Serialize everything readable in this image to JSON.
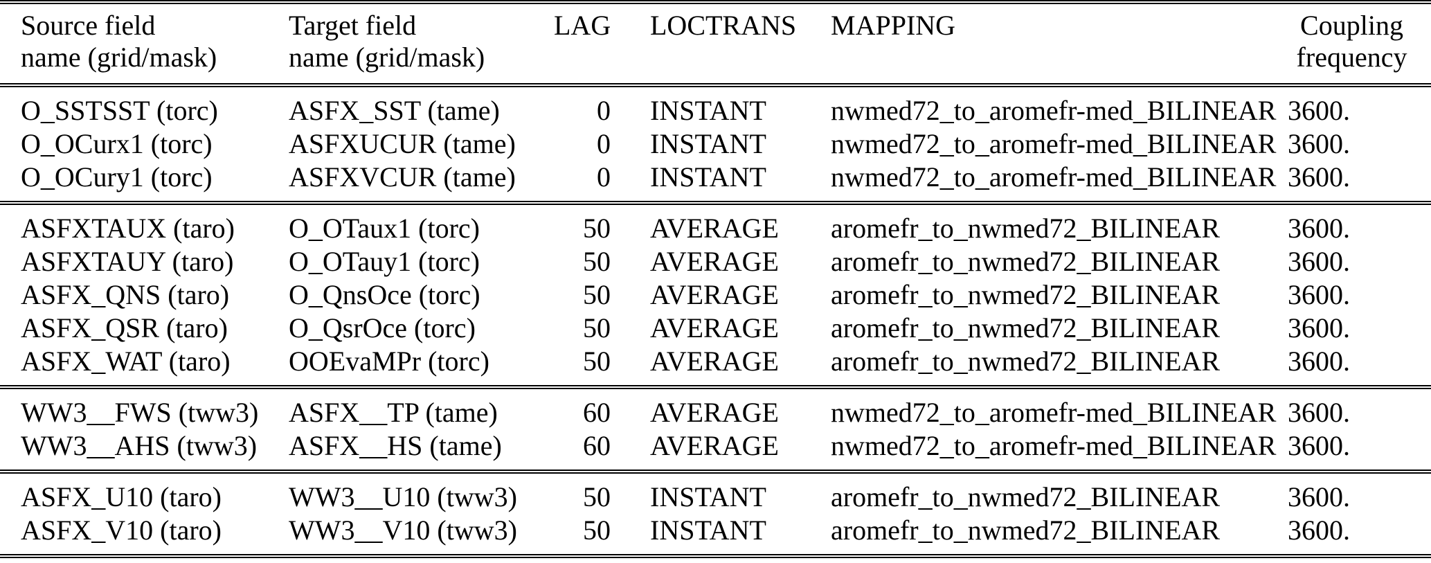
{
  "table": {
    "headers": {
      "source": {
        "line1": "Source field",
        "line2": "name (grid/mask)"
      },
      "target": {
        "line1": "Target field",
        "line2": "name (grid/mask)"
      },
      "lag": "LAG",
      "loctrans": "LOCTRANS",
      "mapping": "MAPPING",
      "frequency": {
        "line1": "Coupling",
        "line2": "frequency"
      }
    },
    "groups": [
      {
        "rows": [
          {
            "source": "O_SSTSST (torc)",
            "target": "ASFX_SST (tame)",
            "lag": "0",
            "loctrans": "INSTANT",
            "mapping": "nwmed72_to_aromefr-med_BILINEAR",
            "frequency": "3600."
          },
          {
            "source": "O_OCurx1 (torc)",
            "target": "ASFXUCUR (tame)",
            "lag": "0",
            "loctrans": "INSTANT",
            "mapping": "nwmed72_to_aromefr-med_BILINEAR",
            "frequency": "3600."
          },
          {
            "source": "O_OCury1 (torc)",
            "target": "ASFXVCUR (tame)",
            "lag": "0",
            "loctrans": "INSTANT",
            "mapping": "nwmed72_to_aromefr-med_BILINEAR",
            "frequency": "3600."
          }
        ]
      },
      {
        "rows": [
          {
            "source": "ASFXTAUX (taro)",
            "target": "O_OTaux1 (torc)",
            "lag": "50",
            "loctrans": "AVERAGE",
            "mapping": "aromefr_to_nwmed72_BILINEAR",
            "frequency": "3600."
          },
          {
            "source": "ASFXTAUY (taro)",
            "target": "O_OTauy1 (torc)",
            "lag": "50",
            "loctrans": "AVERAGE",
            "mapping": "aromefr_to_nwmed72_BILINEAR",
            "frequency": "3600."
          },
          {
            "source": "ASFX_QNS (taro)",
            "target": "O_QnsOce (torc)",
            "lag": "50",
            "loctrans": "AVERAGE",
            "mapping": "aromefr_to_nwmed72_BILINEAR",
            "frequency": "3600."
          },
          {
            "source": "ASFX_QSR (taro)",
            "target": "O_QsrOce (torc)",
            "lag": "50",
            "loctrans": "AVERAGE",
            "mapping": "aromefr_to_nwmed72_BILINEAR",
            "frequency": "3600."
          },
          {
            "source": "ASFX_WAT (taro)",
            "target": "OOEvaMPr (torc)",
            "lag": "50",
            "loctrans": "AVERAGE",
            "mapping": "aromefr_to_nwmed72_BILINEAR",
            "frequency": "3600."
          }
        ]
      },
      {
        "rows": [
          {
            "source": "WW3__FWS (tww3)",
            "target": "ASFX__TP (tame)",
            "lag": "60",
            "loctrans": "AVERAGE",
            "mapping": "nwmed72_to_aromefr-med_BILINEAR",
            "frequency": "3600."
          },
          {
            "source": "WW3__AHS (tww3)",
            "target": "ASFX__HS (tame)",
            "lag": "60",
            "loctrans": "AVERAGE",
            "mapping": "nwmed72_to_aromefr-med_BILINEAR",
            "frequency": "3600."
          }
        ]
      },
      {
        "rows": [
          {
            "source": "ASFX_U10 (taro)",
            "target": "WW3__U10 (tww3)",
            "lag": "50",
            "loctrans": "INSTANT",
            "mapping": "aromefr_to_nwmed72_BILINEAR",
            "frequency": "3600."
          },
          {
            "source": "ASFX_V10 (taro)",
            "target": "WW3__V10 (tww3)",
            "lag": "50",
            "loctrans": "INSTANT",
            "mapping": "aromefr_to_nwmed72_BILINEAR",
            "frequency": "3600."
          }
        ]
      }
    ]
  }
}
